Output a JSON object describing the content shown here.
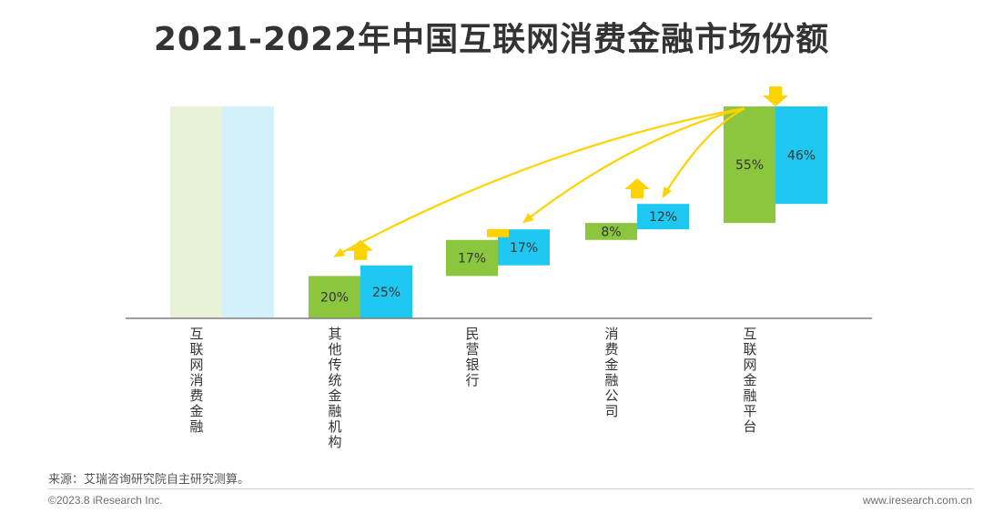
{
  "title": "2021-2022年中国互联网消费金融市场份额",
  "source": "来源：艾瑞咨询研究院自主研究测算。",
  "copyright": "©2023.8 iResearch Inc.",
  "website": "www.iresearch.com.cn",
  "colors": {
    "series_2021": "#8cc63f",
    "series_2022": "#1fc8f0",
    "total_2021": "#e8f2d9",
    "total_2022": "#d3f1fa",
    "arrow": "#ffd200",
    "axis": "#7f7f7f",
    "label": "#333333"
  },
  "chart_data": {
    "type": "bar",
    "subtype": "waterfall",
    "categories": [
      "互联网消费金融",
      "其他传统金融机构",
      "民营银行",
      "消费金融公司",
      "互联网金融平台"
    ],
    "series": [
      {
        "values": [
          100,
          20,
          17,
          8,
          55
        ]
      },
      {
        "values": [
          100,
          25,
          17,
          12,
          46
        ]
      }
    ],
    "data_labels": [
      [
        "",
        "20%",
        "17%",
        "8%",
        "55%"
      ],
      [
        "",
        "25%",
        "17%",
        "12%",
        "46%"
      ]
    ],
    "change": [
      "",
      "up",
      "flat",
      "up",
      "down"
    ],
    "unit": "%",
    "ylim": [
      0,
      100
    ],
    "legend": "none",
    "grid": false
  }
}
